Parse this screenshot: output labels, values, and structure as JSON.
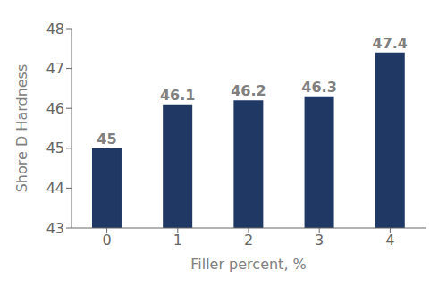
{
  "chart_data": {
    "type": "bar",
    "categories": [
      "0",
      "1",
      "2",
      "3",
      "4"
    ],
    "values": [
      45.0,
      46.1,
      46.2,
      46.3,
      47.4
    ],
    "color": "#1f3864",
    "xlabel": "Filler percent, %",
    "ylabel": "Shore D Hardness",
    "ylim": [
      43,
      48
    ],
    "yticks": [
      43,
      44,
      45,
      46,
      47,
      48
    ],
    "data_labels": true,
    "grid": false
  }
}
